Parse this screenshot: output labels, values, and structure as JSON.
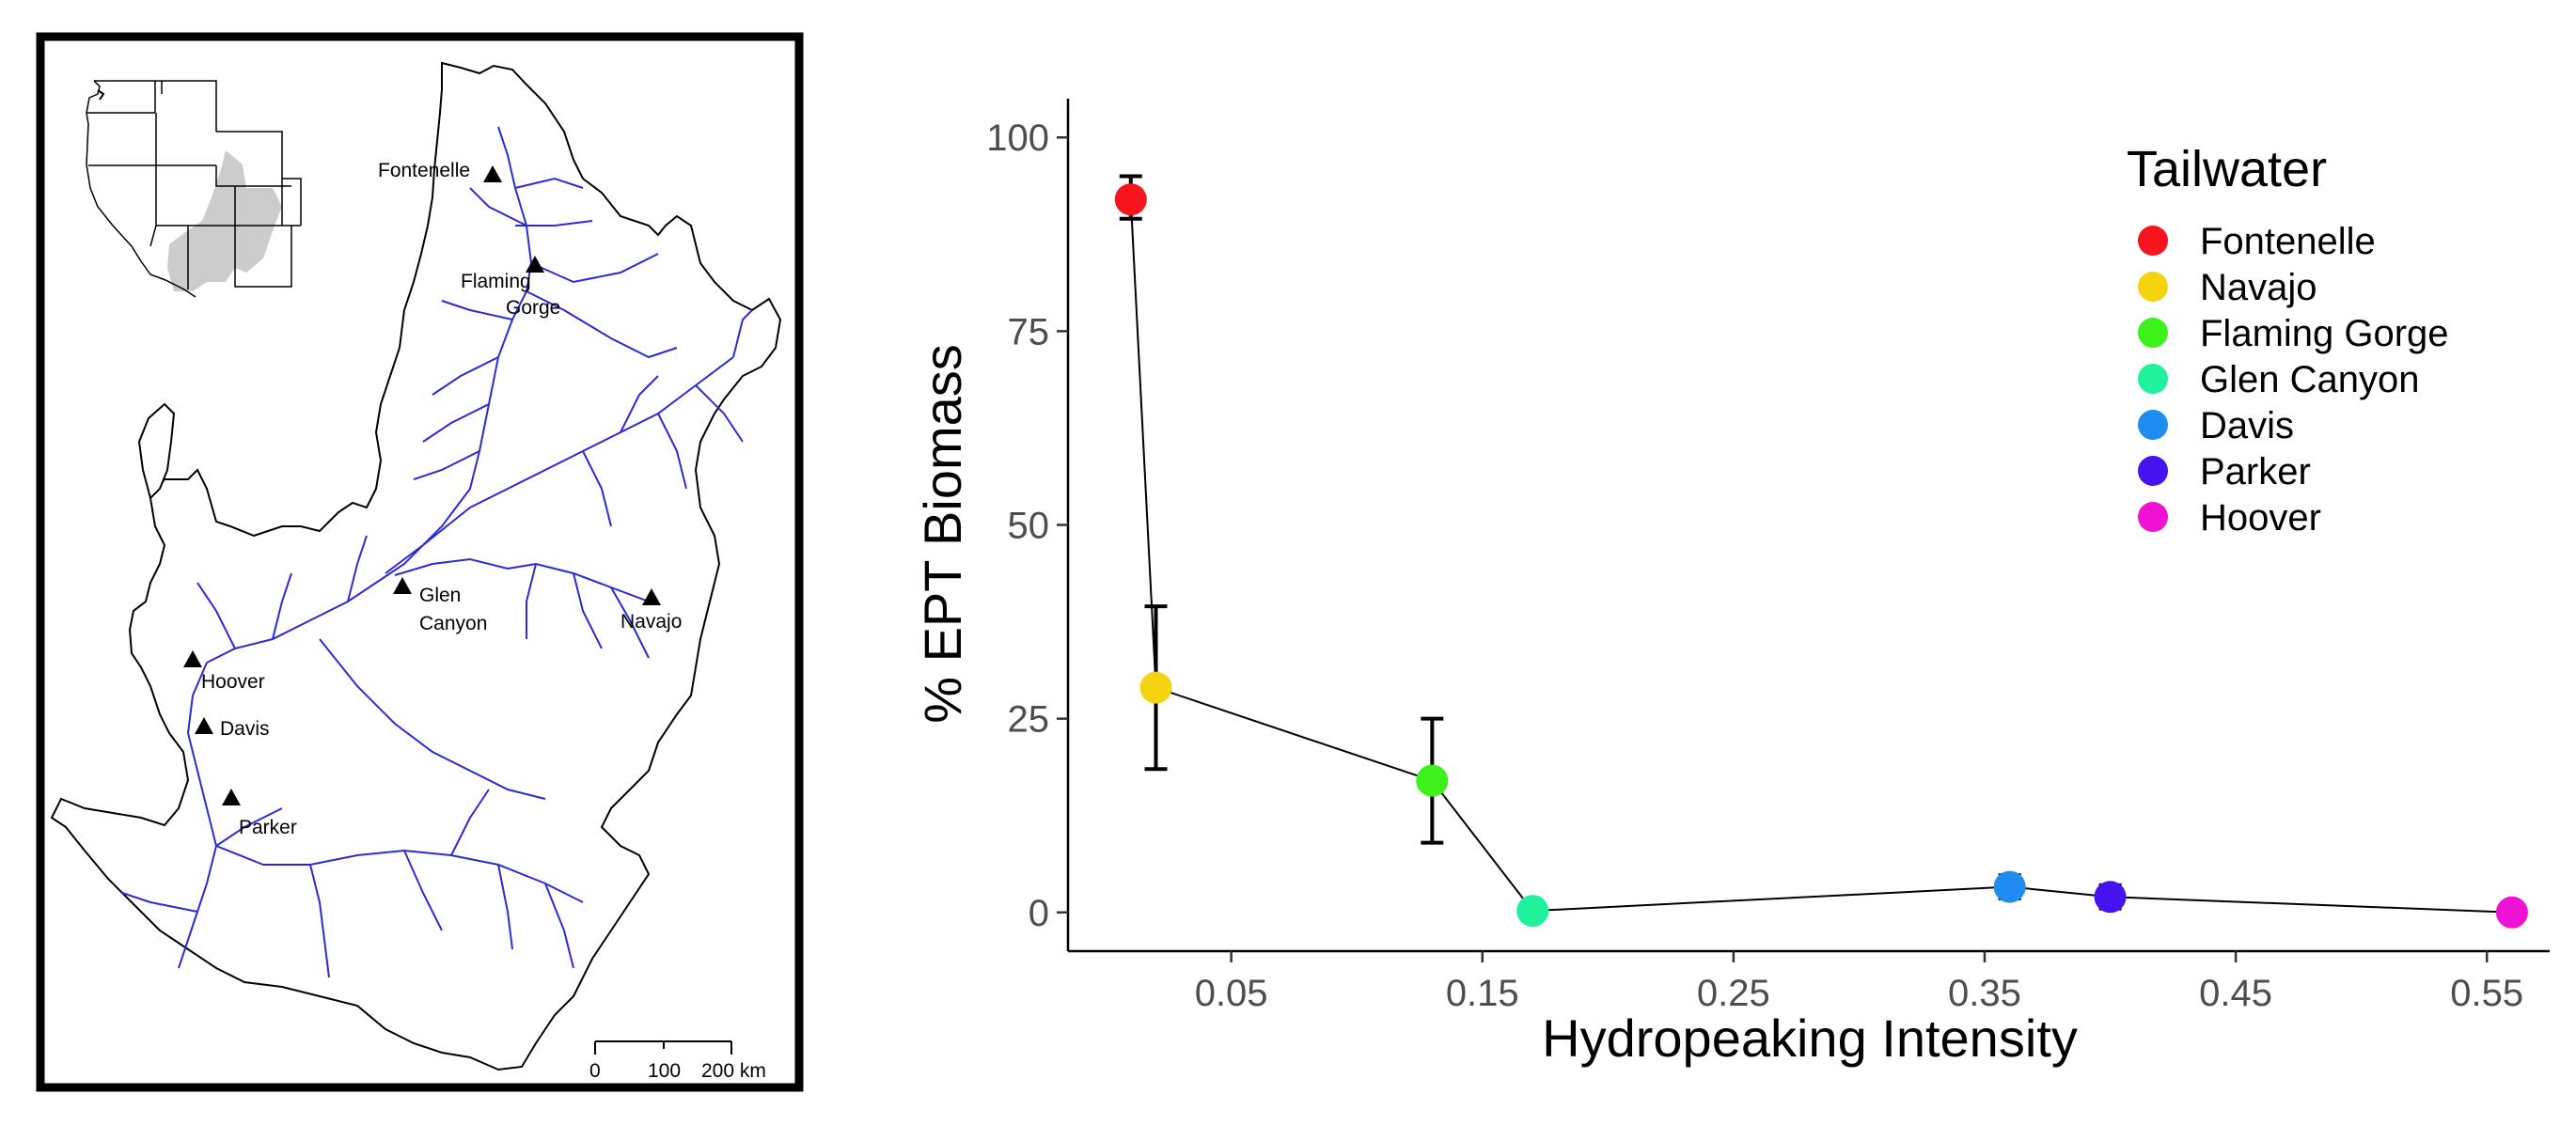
{
  "map": {
    "sites": [
      {
        "name": "Fontenelle",
        "lines": [
          "Fontenelle"
        ]
      },
      {
        "name": "Flaming Gorge",
        "lines": [
          "Flaming",
          "Gorge"
        ]
      },
      {
        "name": "Glen Canyon",
        "lines": [
          "Glen",
          "Canyon"
        ]
      },
      {
        "name": "Navajo",
        "lines": [
          "Navajo"
        ]
      },
      {
        "name": "Hoover",
        "lines": [
          "Hoover"
        ]
      },
      {
        "name": "Davis",
        "lines": [
          "Davis"
        ]
      },
      {
        "name": "Parker",
        "lines": [
          "Parker"
        ]
      }
    ],
    "scale_bar": {
      "labels": [
        "0",
        "100",
        "200 km"
      ]
    },
    "river_color": "#2b2bd6",
    "basin_fill": "#ffffff",
    "inset_highlight_color": "#cccccc"
  },
  "chart_data": {
    "type": "scatter",
    "xlabel": "Hydropeaking Intensity",
    "ylabel": "% EPT Biomass",
    "xlim": [
      -0.015,
      0.575
    ],
    "ylim": [
      -5,
      105
    ],
    "xticks": [
      0.05,
      0.15,
      0.25,
      0.35,
      0.45,
      0.55
    ],
    "xtick_labels": [
      "0.05",
      "0.15",
      "0.25",
      "0.35",
      "0.45",
      "0.55"
    ],
    "yticks": [
      0,
      25,
      50,
      75,
      100
    ],
    "ytick_labels": [
      "0",
      "25",
      "50",
      "75",
      "100"
    ],
    "grid": false,
    "connected_line": true,
    "legend": {
      "title": "Tailwater",
      "position": "top-right"
    },
    "series": [
      {
        "name": "Fontenelle",
        "x": 0.01,
        "y": 92,
        "err_low": 89.5,
        "err_high": 95,
        "color": "#f8141c"
      },
      {
        "name": "Navajo",
        "x": 0.02,
        "y": 29,
        "err_low": 18.5,
        "err_high": 39.5,
        "color": "#f5d40f"
      },
      {
        "name": "Flaming Gorge",
        "x": 0.13,
        "y": 17,
        "err_low": 9,
        "err_high": 25,
        "color": "#3df21b"
      },
      {
        "name": "Glen Canyon",
        "x": 0.17,
        "y": 0.2,
        "err_low": 0,
        "err_high": 0.4,
        "color": "#1ff19c"
      },
      {
        "name": "Davis",
        "x": 0.36,
        "y": 3.3,
        "err_low": 1.8,
        "err_high": 4.8,
        "color": "#1e8cf0"
      },
      {
        "name": "Parker",
        "x": 0.4,
        "y": 2,
        "err_low": 0.5,
        "err_high": 3.5,
        "color": "#4512f0"
      },
      {
        "name": "Hoover",
        "x": 0.56,
        "y": 0,
        "err_low": -0.2,
        "err_high": 0.2,
        "color": "#f012d4"
      }
    ]
  }
}
